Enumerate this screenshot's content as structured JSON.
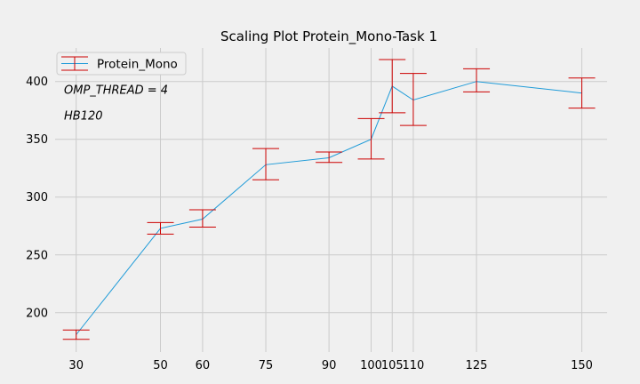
{
  "chart_data": {
    "type": "line",
    "title": "Scaling Plot Protein_Mono-Task 1",
    "xlabel": "",
    "ylabel": "",
    "x": [
      30,
      50,
      60,
      75,
      90,
      100,
      105,
      110,
      125,
      150
    ],
    "x_tick_labels": [
      "30",
      "50",
      "60",
      "75",
      "90",
      "100",
      "105",
      "110",
      "125",
      "150"
    ],
    "y_ticks": [
      200,
      250,
      300,
      350,
      400
    ],
    "xlim": [
      25,
      156
    ],
    "ylim": [
      166,
      429
    ],
    "grid": true,
    "legend_position": "top-left",
    "series": [
      {
        "name": "Protein_Mono",
        "line_color": "#1f9bd8",
        "error_color": "#cc0000",
        "values": [
          181,
          273,
          281,
          328,
          334,
          350,
          396,
          384,
          400,
          390
        ],
        "error_low": [
          177,
          268,
          274,
          315,
          330,
          333,
          373,
          362,
          391,
          377
        ],
        "error_high": [
          185,
          278,
          289,
          342,
          339,
          368,
          419,
          407,
          411,
          403
        ]
      }
    ],
    "annotations": [
      "OMP_THREAD = 4",
      "HB120"
    ]
  }
}
